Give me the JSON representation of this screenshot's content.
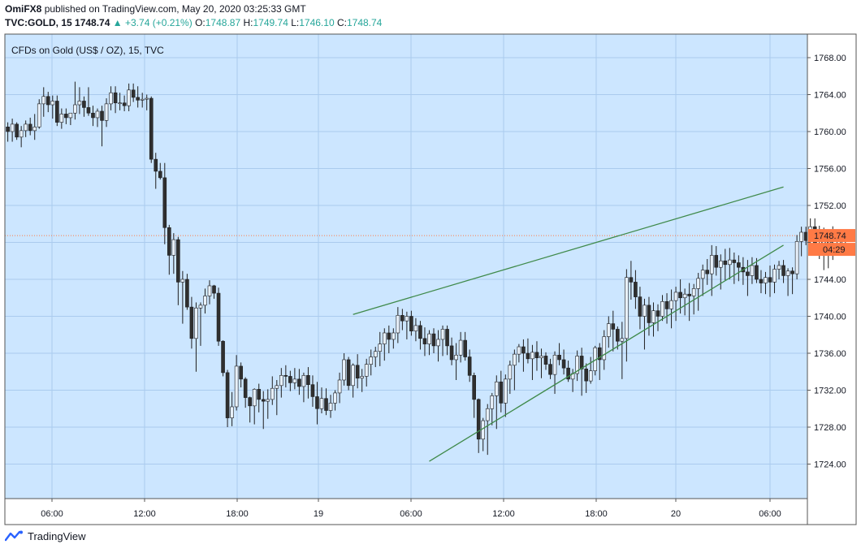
{
  "header": {
    "author": "OmiFX8",
    "published_text": "published on TradingView.com, May 20, 2020 03:25:33 GMT",
    "symbol": "TVC:GOLD, 15",
    "last": "1748.74",
    "change": "+3.74 (+0.21%)",
    "o_label": "O:",
    "o_value": "1748.87",
    "h_label": "H:",
    "h_value": "1749.74",
    "l_label": "L:",
    "l_value": "1746.10",
    "c_label": "C:",
    "c_value": "1748.74"
  },
  "footer": {
    "brand": "TradingView"
  },
  "colors": {
    "plot_bg": "#cce6ff",
    "grid": "#aacbee",
    "up": "#26a69a",
    "down": "#ef5350",
    "candle_body": "#2f2f2f",
    "trendline": "#3f8a4a",
    "price_tag": "#ff7a45"
  },
  "chart_data": {
    "type": "candlestick",
    "title": "CFDs on Gold (US$ / OZ), 15, TVC",
    "y_ticks": [
      "1768.00",
      "1764.00",
      "1760.00",
      "1756.00",
      "1752.00",
      "1748.00",
      "1744.00",
      "1740.00",
      "1736.00",
      "1732.00",
      "1728.00",
      "1724.00"
    ],
    "x_ticks": [
      "06:00",
      "12:00",
      "18:00",
      "19",
      "06:00",
      "12:00",
      "18:00",
      "20",
      "06:00"
    ],
    "ylim": [
      1719.6,
      1771.2
    ],
    "last_price_label": "1748.74",
    "countdown_label": "04:29",
    "candles": [
      [
        1760.5,
        1761.0,
        1758.9,
        1760.0
      ],
      [
        1760.0,
        1761.4,
        1758.9,
        1760.8
      ],
      [
        1760.8,
        1761.0,
        1759.1,
        1759.4
      ],
      [
        1759.4,
        1760.6,
        1758.3,
        1760.1
      ],
      [
        1760.1,
        1761.2,
        1759.4,
        1760.8
      ],
      [
        1760.8,
        1761.5,
        1759.6,
        1760.1
      ],
      [
        1760.1,
        1761.9,
        1759.1,
        1760.5
      ],
      [
        1760.5,
        1763.5,
        1760.3,
        1763.0
      ],
      [
        1763.0,
        1764.8,
        1761.6,
        1763.8
      ],
      [
        1763.8,
        1764.3,
        1762.1,
        1762.9
      ],
      [
        1762.9,
        1763.9,
        1761.4,
        1763.3
      ],
      [
        1763.3,
        1763.9,
        1760.6,
        1761.0
      ],
      [
        1761.0,
        1762.5,
        1760.3,
        1761.9
      ],
      [
        1761.9,
        1762.5,
        1760.8,
        1761.5
      ],
      [
        1761.5,
        1762.0,
        1760.7,
        1762.0
      ],
      [
        1762.0,
        1765.4,
        1761.3,
        1762.9
      ],
      [
        1762.9,
        1764.8,
        1761.9,
        1763.3
      ],
      [
        1763.3,
        1763.8,
        1761.6,
        1762.6
      ],
      [
        1762.6,
        1764.8,
        1761.7,
        1762.0
      ],
      [
        1762.0,
        1762.8,
        1760.6,
        1761.5
      ],
      [
        1761.5,
        1762.5,
        1760.5,
        1762.2
      ],
      [
        1762.2,
        1762.8,
        1758.4,
        1761.2
      ],
      [
        1761.2,
        1763.6,
        1760.5,
        1763.0
      ],
      [
        1763.0,
        1764.9,
        1762.3,
        1764.2
      ],
      [
        1764.2,
        1764.9,
        1762.0,
        1763.1
      ],
      [
        1763.1,
        1764.2,
        1762.3,
        1763.1
      ],
      [
        1763.1,
        1763.9,
        1762.2,
        1762.8
      ],
      [
        1762.8,
        1765.2,
        1762.2,
        1764.5
      ],
      [
        1764.5,
        1765.2,
        1763.2,
        1763.7
      ],
      [
        1763.7,
        1764.9,
        1762.6,
        1763.4
      ],
      [
        1763.4,
        1764.2,
        1762.6,
        1763.5
      ],
      [
        1763.5,
        1764.0,
        1762.3,
        1763.6
      ],
      [
        1763.6,
        1763.8,
        1756.6,
        1757.0
      ],
      [
        1757.0,
        1757.7,
        1753.8,
        1755.7
      ],
      [
        1755.7,
        1756.6,
        1754.8,
        1755.0
      ],
      [
        1755.0,
        1756.6,
        1747.8,
        1749.6
      ],
      [
        1749.6,
        1749.9,
        1744.5,
        1746.6
      ],
      [
        1746.6,
        1749.0,
        1744.6,
        1748.3
      ],
      [
        1748.3,
        1748.6,
        1741.2,
        1743.7
      ],
      [
        1743.7,
        1744.9,
        1739.2,
        1744.0
      ],
      [
        1744.0,
        1744.6,
        1740.7,
        1741.0
      ],
      [
        1741.0,
        1742.1,
        1736.5,
        1737.6
      ],
      [
        1737.6,
        1741.5,
        1734.0,
        1740.9
      ],
      [
        1740.9,
        1741.5,
        1736.8,
        1741.2
      ],
      [
        1741.2,
        1743.0,
        1740.3,
        1742.2
      ],
      [
        1742.2,
        1743.9,
        1741.3,
        1743.3
      ],
      [
        1743.3,
        1743.4,
        1741.9,
        1742.5
      ],
      [
        1742.5,
        1743.1,
        1736.8,
        1737.3
      ],
      [
        1737.3,
        1737.4,
        1733.5,
        1733.9
      ],
      [
        1733.9,
        1734.2,
        1728.0,
        1729.0
      ],
      [
        1729.0,
        1731.8,
        1728.1,
        1730.2
      ],
      [
        1730.2,
        1735.8,
        1729.8,
        1734.6
      ],
      [
        1734.6,
        1735.0,
        1732.3,
        1733.2
      ],
      [
        1733.2,
        1733.4,
        1730.1,
        1731.2
      ],
      [
        1731.2,
        1731.3,
        1728.5,
        1730.3
      ],
      [
        1730.3,
        1732.2,
        1728.3,
        1732.1
      ],
      [
        1732.1,
        1732.7,
        1729.6,
        1731.0
      ],
      [
        1731.0,
        1731.9,
        1727.8,
        1730.8
      ],
      [
        1730.8,
        1732.1,
        1728.9,
        1731.0
      ],
      [
        1731.0,
        1733.5,
        1730.4,
        1732.2
      ],
      [
        1732.2,
        1733.1,
        1729.3,
        1732.5
      ],
      [
        1732.5,
        1734.4,
        1731.2,
        1733.6
      ],
      [
        1733.6,
        1734.7,
        1732.3,
        1733.5
      ],
      [
        1733.5,
        1734.1,
        1731.9,
        1732.8
      ],
      [
        1732.8,
        1734.4,
        1732.1,
        1733.2
      ],
      [
        1733.2,
        1734.3,
        1731.5,
        1732.4
      ],
      [
        1732.4,
        1733.9,
        1730.7,
        1733.6
      ],
      [
        1733.6,
        1734.5,
        1731.1,
        1732.6
      ],
      [
        1732.6,
        1733.6,
        1730.2,
        1731.3
      ],
      [
        1731.3,
        1732.9,
        1728.3,
        1730.0
      ],
      [
        1730.0,
        1732.3,
        1729.5,
        1731.1
      ],
      [
        1731.1,
        1732.2,
        1729.3,
        1729.8
      ],
      [
        1729.8,
        1731.5,
        1729.0,
        1730.6
      ],
      [
        1730.6,
        1732.0,
        1729.8,
        1731.7
      ],
      [
        1731.7,
        1733.9,
        1730.6,
        1733.1
      ],
      [
        1733.1,
        1736.0,
        1732.5,
        1735.3
      ],
      [
        1735.3,
        1735.6,
        1732.0,
        1732.5
      ],
      [
        1732.5,
        1734.9,
        1731.2,
        1734.7
      ],
      [
        1734.7,
        1735.9,
        1732.2,
        1733.3
      ],
      [
        1733.3,
        1734.3,
        1731.8,
        1733.5
      ],
      [
        1733.5,
        1735.4,
        1732.4,
        1734.8
      ],
      [
        1734.8,
        1736.4,
        1733.6,
        1735.6
      ],
      [
        1735.6,
        1736.7,
        1734.5,
        1736.2
      ],
      [
        1736.2,
        1738.3,
        1734.6,
        1737.0
      ],
      [
        1737.0,
        1738.7,
        1735.2,
        1738.2
      ],
      [
        1738.2,
        1739.0,
        1736.0,
        1737.5
      ],
      [
        1737.5,
        1738.7,
        1736.5,
        1738.2
      ],
      [
        1738.2,
        1741.0,
        1737.1,
        1740.1
      ],
      [
        1740.1,
        1740.8,
        1738.5,
        1739.5
      ],
      [
        1739.5,
        1740.5,
        1737.5,
        1740.0
      ],
      [
        1740.0,
        1740.6,
        1737.9,
        1738.4
      ],
      [
        1738.4,
        1739.8,
        1737.3,
        1739.0
      ],
      [
        1739.0,
        1739.5,
        1736.4,
        1737.6
      ],
      [
        1737.6,
        1738.8,
        1735.7,
        1737.0
      ],
      [
        1737.0,
        1738.5,
        1735.8,
        1738.1
      ],
      [
        1738.1,
        1738.7,
        1736.0,
        1736.8
      ],
      [
        1736.8,
        1738.5,
        1735.1,
        1737.5
      ],
      [
        1737.5,
        1739.0,
        1735.7,
        1738.6
      ],
      [
        1738.6,
        1739.0,
        1735.8,
        1736.8
      ],
      [
        1736.8,
        1737.7,
        1734.7,
        1735.3
      ],
      [
        1735.3,
        1737.1,
        1733.1,
        1735.8
      ],
      [
        1735.8,
        1738.3,
        1735.0,
        1737.4
      ],
      [
        1737.4,
        1738.3,
        1735.2,
        1735.6
      ],
      [
        1735.6,
        1736.4,
        1732.9,
        1733.6
      ],
      [
        1733.6,
        1733.9,
        1729.0,
        1731.0
      ],
      [
        1731.0,
        1731.1,
        1725.2,
        1726.7
      ],
      [
        1726.7,
        1729.0,
        1725.4,
        1728.7
      ],
      [
        1728.7,
        1730.5,
        1725.0,
        1730.0
      ],
      [
        1730.0,
        1731.7,
        1728.2,
        1731.4
      ],
      [
        1731.4,
        1733.6,
        1727.8,
        1732.9
      ],
      [
        1732.9,
        1734.1,
        1729.6,
        1730.6
      ],
      [
        1730.6,
        1733.7,
        1729.1,
        1733.2
      ],
      [
        1733.2,
        1735.2,
        1731.6,
        1734.7
      ],
      [
        1734.7,
        1736.4,
        1732.0,
        1735.9
      ],
      [
        1735.9,
        1737.0,
        1735.0,
        1736.7
      ],
      [
        1736.7,
        1737.5,
        1734.0,
        1736.0
      ],
      [
        1736.0,
        1737.6,
        1734.9,
        1735.4
      ],
      [
        1735.4,
        1736.9,
        1733.1,
        1736.1
      ],
      [
        1736.1,
        1737.3,
        1734.1,
        1735.5
      ],
      [
        1735.5,
        1736.5,
        1733.3,
        1735.7
      ],
      [
        1735.7,
        1736.1,
        1734.2,
        1734.8
      ],
      [
        1734.8,
        1735.4,
        1733.2,
        1733.7
      ],
      [
        1733.7,
        1736.2,
        1731.6,
        1735.8
      ],
      [
        1735.8,
        1737.1,
        1734.7,
        1735.3
      ],
      [
        1735.3,
        1736.4,
        1733.7,
        1734.4
      ],
      [
        1734.4,
        1735.2,
        1732.9,
        1733.2
      ],
      [
        1733.2,
        1734.3,
        1731.8,
        1733.8
      ],
      [
        1733.8,
        1736.3,
        1733.0,
        1735.7
      ],
      [
        1735.7,
        1736.6,
        1731.4,
        1734.3
      ],
      [
        1734.3,
        1734.9,
        1731.7,
        1733.0
      ],
      [
        1733.0,
        1735.6,
        1732.7,
        1734.1
      ],
      [
        1734.1,
        1736.8,
        1733.6,
        1736.6
      ],
      [
        1736.6,
        1737.1,
        1733.1,
        1735.3
      ],
      [
        1735.3,
        1738.5,
        1734.2,
        1737.8
      ],
      [
        1737.8,
        1740.0,
        1736.6,
        1739.2
      ],
      [
        1739.2,
        1740.6,
        1736.2,
        1738.6
      ],
      [
        1738.6,
        1738.9,
        1736.4,
        1737.3
      ],
      [
        1737.3,
        1739.4,
        1733.2,
        1737.6
      ],
      [
        1737.6,
        1745.1,
        1735.1,
        1744.2
      ],
      [
        1744.2,
        1746.0,
        1741.8,
        1743.7
      ],
      [
        1743.7,
        1745.0,
        1740.8,
        1742.1
      ],
      [
        1742.1,
        1743.2,
        1738.6,
        1740.0
      ],
      [
        1740.0,
        1741.9,
        1736.4,
        1741.2
      ],
      [
        1741.2,
        1742.1,
        1737.9,
        1739.3
      ],
      [
        1739.3,
        1741.5,
        1737.8,
        1740.6
      ],
      [
        1740.6,
        1741.3,
        1738.4,
        1740.0
      ],
      [
        1740.0,
        1742.3,
        1739.5,
        1741.6
      ],
      [
        1741.6,
        1742.5,
        1739.2,
        1740.8
      ],
      [
        1740.8,
        1742.9,
        1738.7,
        1741.7
      ],
      [
        1741.7,
        1743.2,
        1739.5,
        1742.6
      ],
      [
        1742.6,
        1744.0,
        1740.3,
        1742.0
      ],
      [
        1742.0,
        1743.0,
        1740.1,
        1742.4
      ],
      [
        1742.4,
        1743.6,
        1739.5,
        1742.2
      ],
      [
        1742.2,
        1743.5,
        1740.2,
        1743.0
      ],
      [
        1743.0,
        1744.7,
        1740.6,
        1744.1
      ],
      [
        1744.1,
        1745.6,
        1742.2,
        1745.0
      ],
      [
        1745.0,
        1746.2,
        1743.4,
        1744.6
      ],
      [
        1744.6,
        1747.7,
        1742.2,
        1746.6
      ],
      [
        1746.6,
        1747.6,
        1744.4,
        1745.3
      ],
      [
        1745.3,
        1746.7,
        1742.9,
        1746.0
      ],
      [
        1746.0,
        1747.3,
        1743.9,
        1745.6
      ],
      [
        1745.6,
        1747.4,
        1744.0,
        1746.1
      ],
      [
        1746.1,
        1746.9,
        1743.5,
        1745.8
      ],
      [
        1745.8,
        1746.6,
        1743.8,
        1745.3
      ],
      [
        1745.3,
        1746.4,
        1743.4,
        1744.8
      ],
      [
        1744.8,
        1746.1,
        1742.2,
        1744.4
      ],
      [
        1744.4,
        1746.4,
        1743.5,
        1745.5
      ],
      [
        1745.5,
        1746.3,
        1743.6,
        1744.0
      ],
      [
        1744.0,
        1745.0,
        1742.5,
        1743.6
      ],
      [
        1743.6,
        1744.8,
        1742.4,
        1744.2
      ],
      [
        1744.2,
        1745.5,
        1742.1,
        1743.7
      ],
      [
        1743.7,
        1745.6,
        1742.5,
        1745.1
      ],
      [
        1745.1,
        1746.0,
        1744.0,
        1745.5
      ],
      [
        1745.5,
        1746.1,
        1743.6,
        1744.4
      ],
      [
        1744.4,
        1745.2,
        1742.2,
        1744.9
      ],
      [
        1744.9,
        1745.3,
        1742.4,
        1744.6
      ],
      [
        1744.6,
        1748.8,
        1744.0,
        1748.1
      ],
      [
        1748.1,
        1749.7,
        1746.5,
        1749.1
      ],
      [
        1749.1,
        1749.7,
        1747.7,
        1748.2
      ],
      [
        1748.2,
        1750.6,
        1747.3,
        1749.7
      ],
      [
        1749.7,
        1750.6,
        1746.9,
        1747.8
      ],
      [
        1747.8,
        1749.8,
        1746.2,
        1747.4
      ],
      [
        1747.4,
        1749.6,
        1745.0,
        1748.7
      ],
      [
        1748.7,
        1749.0,
        1745.2,
        1748.4
      ],
      [
        1748.87,
        1749.74,
        1746.1,
        1748.74
      ]
    ],
    "trendlines": [
      {
        "x1": 77,
        "y1": 1740.2,
        "x2": 173,
        "y2": 1754.0
      },
      {
        "x1": 94,
        "y1": 1724.3,
        "x2": 173,
        "y2": 1747.7
      }
    ]
  }
}
